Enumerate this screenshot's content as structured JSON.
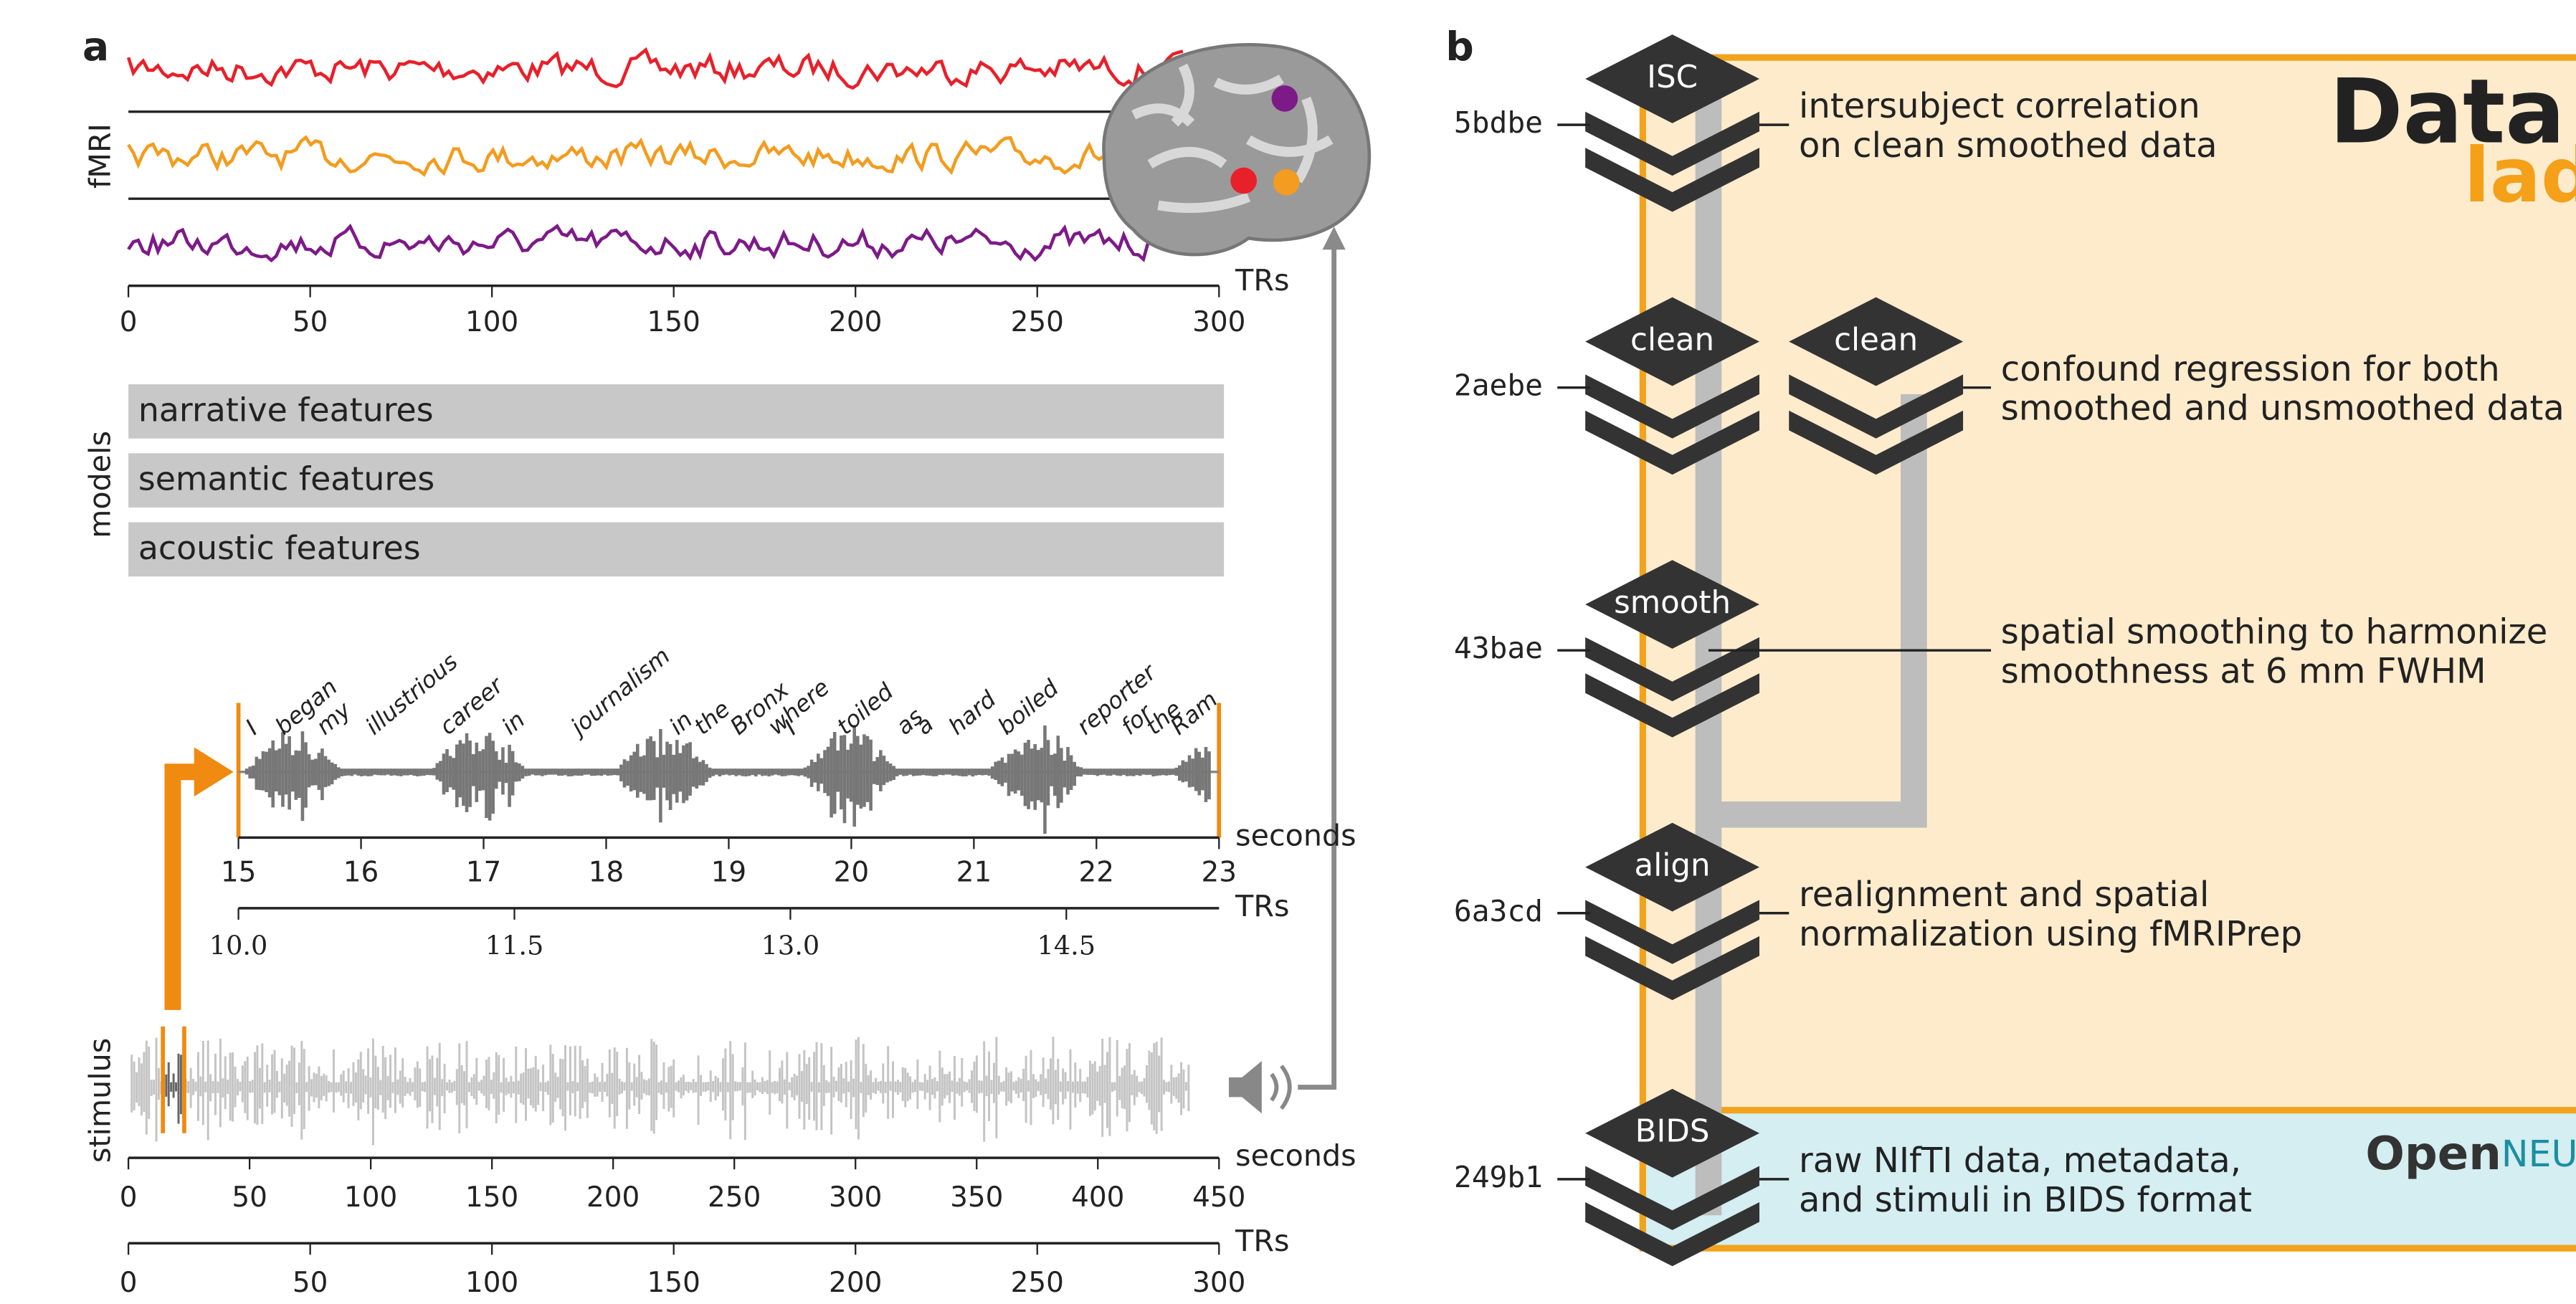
{
  "panel_a": {
    "label": "a",
    "fmri": {
      "ylabel": "fMRI",
      "xlabel": "TRs",
      "xlim": [
        0,
        300
      ],
      "xticks": [
        0,
        50,
        100,
        150,
        200,
        250,
        300
      ],
      "trace_colors": [
        "#e8202a",
        "#f39c1f",
        "#7d1a88"
      ]
    },
    "models": {
      "ylabel": "models",
      "features": [
        "narrative features",
        "semantic features",
        "acoustic features"
      ]
    },
    "excerpt": {
      "words": [
        "I",
        "began",
        "my",
        "illustrious",
        "career",
        "in",
        "journalism",
        "in",
        "the",
        "Bronx",
        "where",
        "I",
        "toiled",
        "as",
        "a",
        "hard",
        "boiled",
        "reporter",
        "for",
        "the",
        "Ram"
      ],
      "seconds_label": "seconds",
      "seconds_lim": [
        15,
        23
      ],
      "seconds_ticks": [
        15,
        16,
        17,
        18,
        19,
        20,
        21,
        22,
        23
      ],
      "trs_label": "TRs",
      "trs_lim": [
        10,
        15.33
      ],
      "trs_ticks": [
        {
          "value": 10,
          "label": "10.0"
        },
        {
          "value": 11.5,
          "label": "11.5"
        },
        {
          "value": 13,
          "label": "13.0"
        },
        {
          "value": 14.5,
          "label": "14.5"
        }
      ]
    },
    "stimulus": {
      "ylabel": "stimulus",
      "seconds_label": "seconds",
      "seconds_lim": [
        0,
        450
      ],
      "seconds_ticks": [
        0,
        50,
        100,
        150,
        200,
        250,
        300,
        350,
        400,
        450
      ],
      "trs_label": "TRs",
      "trs_lim": [
        0,
        300
      ],
      "trs_ticks": [
        0,
        50,
        100,
        150,
        200,
        250,
        300
      ]
    }
  },
  "panel_b": {
    "label": "b",
    "steps": [
      {
        "node": "ISC",
        "hash": "5bdbe",
        "description": [
          "intersubject correlation",
          "on clean smoothed data"
        ]
      },
      {
        "node": "clean",
        "hash": "2aebe",
        "description": [
          "confound regression for both",
          "smoothed and unsmoothed data"
        ],
        "extra_node": "clean"
      },
      {
        "node": "smooth",
        "hash": "43bae",
        "description": [
          "spatial smoothing to harmonize",
          "smoothness at 6 mm FWHM"
        ]
      },
      {
        "node": "align",
        "hash": "6a3cd",
        "description": [
          "realignment and spatial",
          "normalization using fMRIPrep"
        ]
      },
      {
        "node": "BIDS",
        "hash": "249b1",
        "description": [
          "raw NIfTI data, metadata,",
          "and stimuli in BIDS format"
        ]
      }
    ],
    "logos": {
      "datalad": [
        "Data",
        "lad"
      ],
      "openneuro": [
        "Open",
        "NEURO"
      ]
    }
  }
}
